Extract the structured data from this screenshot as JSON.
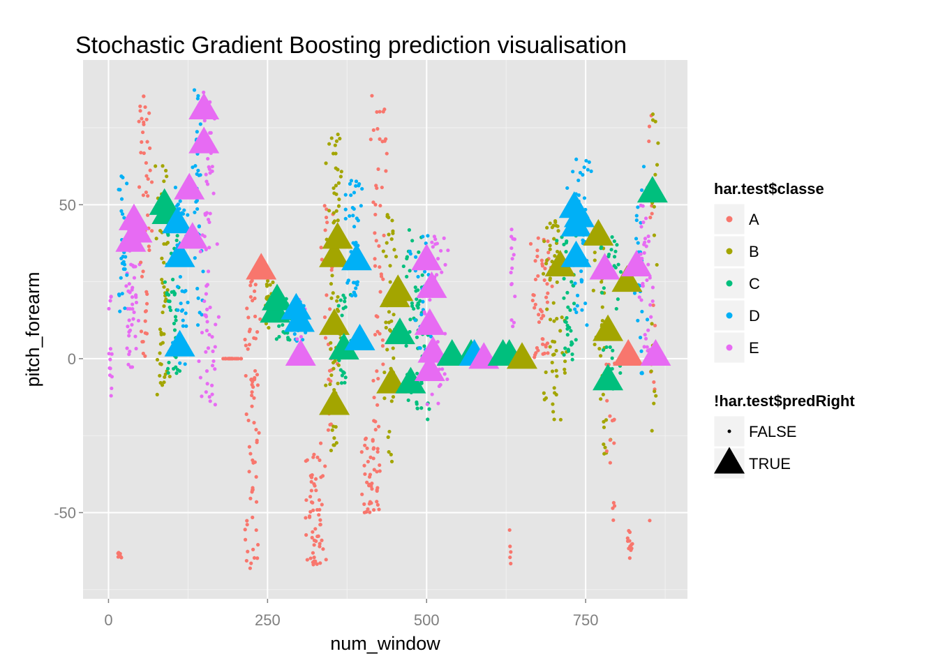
{
  "chart_data": {
    "type": "scatter",
    "title": "Stochastic Gradient Boosting prediction visualisation",
    "xlabel": "num_window",
    "ylabel": "pitch_forearm",
    "xlim": [
      -40,
      910
    ],
    "ylim": [
      -78,
      97
    ],
    "xticks": [
      0,
      250,
      500,
      750
    ],
    "xtick_labels": [
      "0",
      "250",
      "500",
      "750"
    ],
    "yticks": [
      -50,
      0,
      50
    ],
    "ytick_labels": [
      "-50",
      "0",
      "50"
    ],
    "background": "#e5e5e5",
    "grid": true,
    "legend_placement": "right",
    "legends": [
      {
        "title": "har.test$classe",
        "entries": [
          {
            "label": "A",
            "color": "#f8766d"
          },
          {
            "label": "B",
            "color": "#a3a500"
          },
          {
            "label": "C",
            "color": "#00bf7d"
          },
          {
            "label": "D",
            "color": "#00b0f6"
          },
          {
            "label": "E",
            "color": "#e76bf3"
          }
        ]
      },
      {
        "title": "!har.test$predRight",
        "entries": [
          {
            "label": "FALSE",
            "shape": "small-dot"
          },
          {
            "label": "TRUE",
            "shape": "large-triangle"
          }
        ]
      }
    ],
    "point_clusters": [
      {
        "class": "A",
        "x": [
          12,
          22
        ],
        "y": [
          -65,
          -63
        ],
        "n": 8
      },
      {
        "class": "E",
        "x": [
          0,
          6
        ],
        "y": [
          -20,
          26
        ],
        "n": 14
      },
      {
        "class": "E",
        "x": [
          24,
          50
        ],
        "y": [
          -3,
          45
        ],
        "n": 55
      },
      {
        "class": "D",
        "x": [
          15,
          30
        ],
        "y": [
          15,
          60
        ],
        "n": 30
      },
      {
        "class": "A",
        "x": [
          45,
          70
        ],
        "y": [
          -2,
          86
        ],
        "n": 50
      },
      {
        "class": "B",
        "x": [
          72,
          100
        ],
        "y": [
          -12,
          64
        ],
        "n": 50
      },
      {
        "class": "C",
        "x": [
          85,
          115
        ],
        "y": [
          -5,
          50
        ],
        "n": 45
      },
      {
        "class": "D",
        "x": [
          100,
          130
        ],
        "y": [
          -3,
          57
        ],
        "n": 40
      },
      {
        "class": "D",
        "x": [
          130,
          150
        ],
        "y": [
          10,
          88
        ],
        "n": 40
      },
      {
        "class": "E",
        "x": [
          140,
          175
        ],
        "y": [
          -15,
          90
        ],
        "n": 70
      },
      {
        "class": "A",
        "x": [
          175,
          210
        ],
        "y": [
          0,
          0
        ],
        "n": 20
      },
      {
        "class": "A",
        "x": [
          212,
          240
        ],
        "y": [
          -70,
          28
        ],
        "n": 70
      },
      {
        "class": "B",
        "x": [
          240,
          265
        ],
        "y": [
          10,
          28
        ],
        "n": 25
      },
      {
        "class": "C",
        "x": [
          260,
          300
        ],
        "y": [
          5,
          20
        ],
        "n": 30
      },
      {
        "class": "D",
        "x": [
          285,
          310
        ],
        "y": [
          5,
          20
        ],
        "n": 20
      },
      {
        "class": "E",
        "x": [
          295,
          310
        ],
        "y": [
          0,
          20
        ],
        "n": 15
      },
      {
        "class": "A",
        "x": [
          305,
          345
        ],
        "y": [
          -67,
          -30
        ],
        "n": 60
      },
      {
        "class": "A",
        "x": [
          330,
          360
        ],
        "y": [
          -30,
          50
        ],
        "n": 30
      },
      {
        "class": "B",
        "x": [
          340,
          370
        ],
        "y": [
          -30,
          82
        ],
        "n": 70
      },
      {
        "class": "C",
        "x": [
          355,
          385
        ],
        "y": [
          -8,
          25
        ],
        "n": 30
      },
      {
        "class": "D",
        "x": [
          370,
          400
        ],
        "y": [
          20,
          58
        ],
        "n": 45
      },
      {
        "class": "A",
        "x": [
          395,
          430
        ],
        "y": [
          -50,
          -25
        ],
        "n": 45
      },
      {
        "class": "A",
        "x": [
          410,
          440
        ],
        "y": [
          -25,
          87
        ],
        "n": 50
      },
      {
        "class": "B",
        "x": [
          430,
          455
        ],
        "y": [
          -35,
          58
        ],
        "n": 40
      },
      {
        "class": "C",
        "x": [
          460,
          510
        ],
        "y": [
          -22,
          42
        ],
        "n": 65
      },
      {
        "class": "D",
        "x": [
          470,
          520
        ],
        "y": [
          0,
          40
        ],
        "n": 30
      },
      {
        "class": "E",
        "x": [
          490,
          540
        ],
        "y": [
          -15,
          40
        ],
        "n": 40
      },
      {
        "class": "E",
        "x": [
          630,
          640
        ],
        "y": [
          -5,
          42
        ],
        "n": 18
      },
      {
        "class": "A",
        "x": [
          628,
          635
        ],
        "y": [
          -72,
          -55
        ],
        "n": 5
      },
      {
        "class": "A",
        "x": [
          660,
          700
        ],
        "y": [
          0,
          40
        ],
        "n": 50
      },
      {
        "class": "B",
        "x": [
          680,
          720
        ],
        "y": [
          -20,
          45
        ],
        "n": 60
      },
      {
        "class": "C",
        "x": [
          700,
          740
        ],
        "y": [
          -3,
          45
        ],
        "n": 40
      },
      {
        "class": "D",
        "x": [
          720,
          760
        ],
        "y": [
          10,
          66
        ],
        "n": 50
      },
      {
        "class": "B",
        "x": [
          760,
          790
        ],
        "y": [
          -35,
          45
        ],
        "n": 35
      },
      {
        "class": "C",
        "x": [
          770,
          810
        ],
        "y": [
          -10,
          40
        ],
        "n": 35
      },
      {
        "class": "A",
        "x": [
          780,
          800
        ],
        "y": [
          -55,
          0
        ],
        "n": 18
      },
      {
        "class": "A",
        "x": [
          810,
          830
        ],
        "y": [
          -68,
          -55
        ],
        "n": 12
      },
      {
        "class": "D",
        "x": [
          820,
          850
        ],
        "y": [
          -5,
          64
        ],
        "n": 35
      },
      {
        "class": "E",
        "x": [
          830,
          860
        ],
        "y": [
          0,
          50
        ],
        "n": 35
      },
      {
        "class": "A",
        "x": [
          845,
          860
        ],
        "y": [
          -55,
          83
        ],
        "n": 15
      },
      {
        "class": "B",
        "x": [
          850,
          865
        ],
        "y": [
          -25,
          87
        ],
        "n": 20
      }
    ],
    "triangles": [
      {
        "class": "E",
        "x": 35,
        "y": 38
      },
      {
        "class": "E",
        "x": 40,
        "y": 45
      },
      {
        "class": "E",
        "x": 45,
        "y": 41
      },
      {
        "class": "C",
        "x": 88,
        "y": 50
      },
      {
        "class": "C",
        "x": 92,
        "y": 47
      },
      {
        "class": "D",
        "x": 108,
        "y": 44
      },
      {
        "class": "D",
        "x": 112,
        "y": 33
      },
      {
        "class": "D",
        "x": 112,
        "y": 4
      },
      {
        "class": "E",
        "x": 127,
        "y": 55
      },
      {
        "class": "E",
        "x": 132,
        "y": 39
      },
      {
        "class": "E",
        "x": 150,
        "y": 81
      },
      {
        "class": "E",
        "x": 150,
        "y": 70
      },
      {
        "class": "A",
        "x": 240,
        "y": 29
      },
      {
        "class": "C",
        "x": 262,
        "y": 15
      },
      {
        "class": "C",
        "x": 265,
        "y": 19
      },
      {
        "class": "D",
        "x": 295,
        "y": 16
      },
      {
        "class": "D",
        "x": 300,
        "y": 12
      },
      {
        "class": "E",
        "x": 302,
        "y": 1
      },
      {
        "class": "B",
        "x": 355,
        "y": 33
      },
      {
        "class": "B",
        "x": 360,
        "y": 39
      },
      {
        "class": "B",
        "x": 355,
        "y": 11
      },
      {
        "class": "B",
        "x": 355,
        "y": -15
      },
      {
        "class": "C",
        "x": 370,
        "y": 3
      },
      {
        "class": "D",
        "x": 395,
        "y": 6
      },
      {
        "class": "D",
        "x": 390,
        "y": 32
      },
      {
        "class": "B",
        "x": 445,
        "y": -8
      },
      {
        "class": "B",
        "x": 450,
        "y": 20
      },
      {
        "class": "B",
        "x": 455,
        "y": 22
      },
      {
        "class": "C",
        "x": 458,
        "y": 8
      },
      {
        "class": "C",
        "x": 475,
        "y": -8
      },
      {
        "class": "E",
        "x": 500,
        "y": 32
      },
      {
        "class": "E",
        "x": 508,
        "y": 23
      },
      {
        "class": "E",
        "x": 505,
        "y": 11
      },
      {
        "class": "E",
        "x": 505,
        "y": -4
      },
      {
        "class": "E",
        "x": 510,
        "y": 2
      },
      {
        "class": "C",
        "x": 540,
        "y": 1
      },
      {
        "class": "C",
        "x": 570,
        "y": 1
      },
      {
        "class": "D",
        "x": 575,
        "y": 1
      },
      {
        "class": "E",
        "x": 590,
        "y": 0
      },
      {
        "class": "C",
        "x": 620,
        "y": 1
      },
      {
        "class": "C",
        "x": 630,
        "y": 1
      },
      {
        "class": "B",
        "x": 650,
        "y": 0
      },
      {
        "class": "B",
        "x": 710,
        "y": 30
      },
      {
        "class": "D",
        "x": 732,
        "y": 49
      },
      {
        "class": "D",
        "x": 735,
        "y": 43
      },
      {
        "class": "D",
        "x": 735,
        "y": 33
      },
      {
        "class": "D",
        "x": 740,
        "y": 46
      },
      {
        "class": "B",
        "x": 770,
        "y": 40
      },
      {
        "class": "B",
        "x": 785,
        "y": 9
      },
      {
        "class": "E",
        "x": 780,
        "y": 29
      },
      {
        "class": "C",
        "x": 785,
        "y": -7
      },
      {
        "class": "B",
        "x": 815,
        "y": 25
      },
      {
        "class": "A",
        "x": 817,
        "y": 1
      },
      {
        "class": "E",
        "x": 830,
        "y": 30
      },
      {
        "class": "C",
        "x": 855,
        "y": 54
      },
      {
        "class": "E",
        "x": 860,
        "y": 1
      }
    ]
  }
}
